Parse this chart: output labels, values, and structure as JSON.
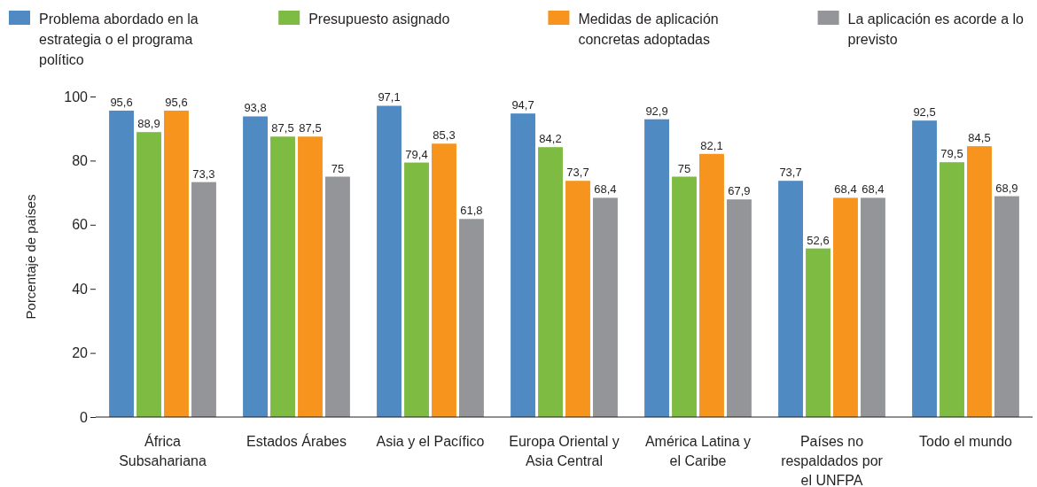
{
  "chart_data": {
    "type": "bar",
    "ylabel": "Porcentaje de países",
    "categories": [
      "África Subsahariana",
      "Estados Árabes",
      "Asia y el Pacífico",
      "Europa Oriental y Asia Central",
      "América Latina y el Caribe",
      "Países no respaldados por el UNFPA",
      "Todo el mundo"
    ],
    "series": [
      {
        "name": "Problema abordado en la estrategia o el programa político",
        "color": "#4f8ac2",
        "values": [
          95.6,
          93.8,
          97.1,
          94.7,
          92.9,
          73.7,
          92.5
        ],
        "value_labels": [
          "95,6",
          "93,8",
          "97,1",
          "94,7",
          "92,9",
          "73,7",
          "92,5"
        ]
      },
      {
        "name": "Presupuesto asignado",
        "color": "#7dbb42",
        "values": [
          88.9,
          87.5,
          79.4,
          84.2,
          75,
          52.6,
          79.5
        ],
        "value_labels": [
          "88,9",
          "87,5",
          "79,4",
          "84,2",
          "75",
          "52,6",
          "79,5"
        ]
      },
      {
        "name": "Medidas de aplicación concretas adoptadas",
        "color": "#f7941d",
        "values": [
          95.6,
          87.5,
          85.3,
          73.7,
          82.1,
          68.4,
          84.5
        ],
        "value_labels": [
          "95,6",
          "87,5",
          "85,3",
          "73,7",
          "82,1",
          "68,4",
          "84,5"
        ]
      },
      {
        "name": "La aplicación es acorde a lo previsto",
        "color": "#939598",
        "values": [
          73.3,
          75,
          61.8,
          68.4,
          67.9,
          68.4,
          68.9
        ],
        "value_labels": [
          "73,3",
          "75",
          "61,8",
          "68,4",
          "67,9",
          "68,4",
          "68,9"
        ]
      }
    ],
    "ylim": [
      0,
      100
    ],
    "yticks": [
      0,
      20,
      40,
      60,
      80,
      100
    ],
    "grid": false,
    "legend": "top"
  }
}
